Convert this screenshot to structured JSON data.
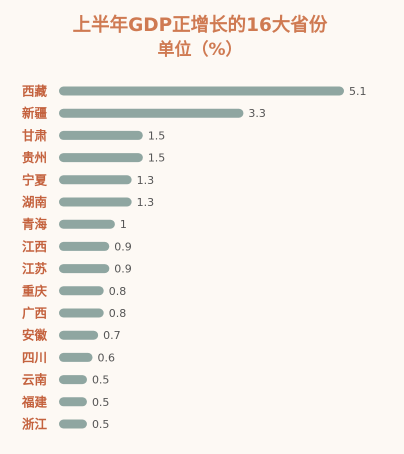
{
  "chart_data": {
    "type": "bar",
    "orientation": "horizontal",
    "title": "上半年GDP正增长的16大省份",
    "subtitle": "单位（%）",
    "categories": [
      "西藏",
      "新疆",
      "甘肃",
      "贵州",
      "宁夏",
      "湖南",
      "青海",
      "江西",
      "江苏",
      "重庆",
      "广西",
      "安徽",
      "四川",
      "云南",
      "福建",
      "浙江"
    ],
    "values": [
      5.1,
      3.3,
      1.5,
      1.5,
      1.3,
      1.3,
      1,
      0.9,
      0.9,
      0.8,
      0.8,
      0.7,
      0.6,
      0.5,
      0.5,
      0.5
    ],
    "value_labels": [
      "5.1",
      "3.3",
      "1.5",
      "1.5",
      "1.3",
      "1.3",
      "1",
      "0.9",
      "0.9",
      "0.8",
      "0.8",
      "0.7",
      "0.6",
      "0.5",
      "0.5",
      "0.5"
    ],
    "xlim": [
      0,
      5.1
    ],
    "grid": false,
    "legend": "none",
    "colors": {
      "bar": "#8fa6a1",
      "title": "#cf7a52",
      "category": "#c4623e",
      "value": "#555555",
      "background": "#fdf9f4"
    }
  }
}
